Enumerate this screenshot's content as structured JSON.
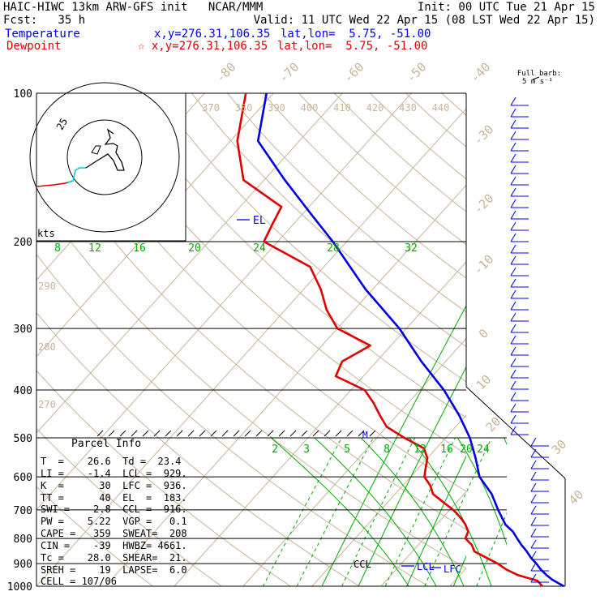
{
  "header": {
    "line1_left": "HAIC-HIWC 13km ARW-GFS init   NCAR/MMM",
    "line1_right": "Init: 00 UTC Tue 21 Apr 15",
    "line2_left": "Fcst:   35 h",
    "line2_right": "Valid: 11 UTC Wed 22 Apr 15 (08 LST Wed 22 Apr 15)",
    "temperature_label": "Temperature",
    "temperature_xy": "x,y=276.31,106.35",
    "temperature_latlon": "lat,lon=  5.75, -51.00",
    "dewpoint_label": "Dewpoint",
    "dewpoint_xy": "☆ x,y=276.31,106.35",
    "dewpoint_latlon": "lat,lon=  5.75, -51.00"
  },
  "colors": {
    "temperature": "#0000e0",
    "dewpoint": "#e00000",
    "grid": "#000000",
    "dry_adiabat": "#c8b496",
    "moist_adiabat": "#00aa00",
    "hodograph_low": "#00c0e0",
    "background": "#ffffff"
  },
  "wind_key": {
    "line1": "Full barb:",
    "line2": "5 m s⁻¹"
  },
  "hodograph": {
    "ring_label": "25",
    "units": "kts"
  },
  "parcel_info": {
    "title": "Parcel Info",
    "rows": [
      "T  =    26.6  Td =  23.4",
      "LI =    -1.4  LCL =  929.",
      "K  =      30  LFC =  936.",
      "TT =      40  EL  =  183.",
      "SWI =    2.8  CCL =  916.",
      "PW =    5.22  VGP =   0.1",
      "CAPE =   359  SWEAT=  208",
      "CIN =    -39  HWBZ= 4661.",
      "Tc =    28.0  SHEAR=  21.",
      "SREH =    19  LAPSE=  6.0",
      "CELL = 107/06"
    ]
  },
  "chart_data": {
    "type": "line",
    "diagram": "skew-t log-p",
    "y_axis": {
      "scale": "log",
      "range_hpa": [
        1000,
        100
      ],
      "tick_labels": [
        "100",
        "200",
        "300",
        "400",
        "500",
        "600",
        "700",
        "800",
        "900",
        "1000"
      ]
    },
    "isotherm_labels_c": [
      "-80",
      "-70",
      "-60",
      "-50",
      "-40",
      "-30",
      "-20",
      "-10",
      "0",
      "10",
      "20",
      "30",
      "40"
    ],
    "theta_labels_k": [
      "370",
      "380",
      "390",
      "400",
      "410",
      "420",
      "430",
      "440"
    ],
    "dry_adiabat_side_labels_k": [
      "290",
      "280",
      "270"
    ],
    "mixing_ratio_labels_upper": [
      "8",
      "12",
      "16",
      "20",
      "24",
      "28",
      "32"
    ],
    "mixing_ratio_labels_lower": [
      "2",
      "3",
      "5",
      "8",
      "12",
      "16",
      "20",
      "24"
    ],
    "level_labels": [
      "EL",
      "CCL",
      "LCL",
      "LFC",
      "M"
    ],
    "series": [
      {
        "name": "Temperature",
        "p": [
          1000,
          970,
          950,
          925,
          900,
          875,
          850,
          825,
          800,
          775,
          750,
          700,
          650,
          600,
          550,
          500,
          450,
          400,
          350,
          300,
          250,
          200,
          175,
          150,
          125,
          100
        ],
        "t": [
          26.5,
          24.0,
          22.6,
          21.0,
          19.6,
          18.0,
          16.6,
          15.0,
          13.5,
          12.0,
          10.0,
          7.0,
          4.0,
          0.0,
          -3.0,
          -6.5,
          -11.0,
          -16.5,
          -23.5,
          -31.0,
          -41.0,
          -52.0,
          -59.0,
          -67.0,
          -76.0,
          -81.0
        ]
      },
      {
        "name": "Dewpoint",
        "p": [
          1000,
          975,
          950,
          925,
          900,
          875,
          850,
          825,
          800,
          775,
          750,
          725,
          700,
          675,
          650,
          625,
          600,
          575,
          550,
          525,
          500,
          475,
          450,
          425,
          400,
          375,
          350,
          325,
          300,
          275,
          250,
          225,
          200,
          185,
          170,
          150,
          125,
          100
        ],
        "t": [
          23.4,
          22.0,
          18.5,
          16.0,
          14.0,
          11.5,
          9.0,
          7.8,
          6.0,
          5.5,
          4.2,
          2.5,
          0.5,
          -2.0,
          -4.5,
          -6.0,
          -8.0,
          -9.0,
          -10.0,
          -11.8,
          -16.0,
          -20.0,
          -22.5,
          -25.0,
          -28.0,
          -34.0,
          -35.0,
          -33.0,
          -40.0,
          -44.0,
          -47.5,
          -52.0,
          -62.0,
          -63.0,
          -64.0,
          -73.0,
          -79.0,
          -84.0
        ]
      }
    ]
  }
}
